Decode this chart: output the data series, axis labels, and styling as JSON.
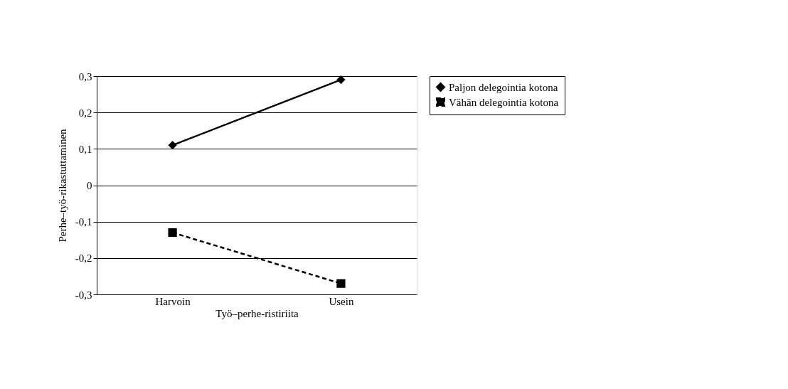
{
  "chart_data": {
    "type": "line",
    "xlabel": "Työ–perhe-ristiriita",
    "ylabel": "Perhe–työ-rikastuttaminen",
    "categories": [
      "Harvoin",
      "Usein"
    ],
    "series": [
      {
        "name": "Paljon delegointia kotona",
        "color": "#000000",
        "values": [
          0.11,
          0.29
        ],
        "marker": "diamond",
        "line_style": "solid"
      },
      {
        "name": "Vähän delegointia kotona",
        "color": "#000000",
        "values": [
          -0.13,
          -0.27
        ],
        "marker": "square",
        "line_style": "dashed"
      }
    ],
    "ylim": [
      -0.3,
      0.3
    ],
    "yticks": [
      {
        "value": -0.3,
        "label": "-0,3"
      },
      {
        "value": -0.2,
        "label": "-0,2"
      },
      {
        "value": -0.1,
        "label": "-0,1"
      },
      {
        "value": 0,
        "label": "0"
      },
      {
        "value": 0.1,
        "label": "0,1"
      },
      {
        "value": 0.2,
        "label": "0,2"
      },
      {
        "value": 0.3,
        "label": "0,3"
      }
    ],
    "grid": "y",
    "legend": "right"
  }
}
